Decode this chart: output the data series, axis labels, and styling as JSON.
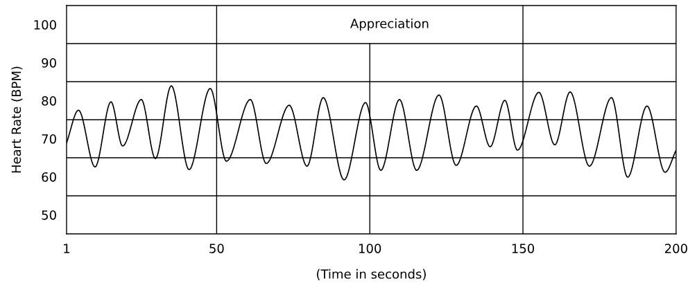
{
  "chart_data": {
    "type": "line",
    "title": "Appreciation",
    "xlabel": "(Time in seconds)",
    "ylabel": "Heart Rate (BPM)",
    "x": [
      1,
      4.9,
      10.3,
      15.5,
      19.3,
      25.4,
      30,
      35.2,
      41,
      47.9,
      53.2,
      61,
      66.2,
      73.7,
      79.5,
      84.8,
      91.6,
      98.6,
      103.6,
      109.7,
      115.3,
      122.6,
      128.2,
      134.8,
      139.3,
      144.1,
      148.2,
      155.2,
      160.4,
      165.4,
      171.7,
      178.9,
      184.2,
      190.5,
      196.4,
      200
    ],
    "series": [
      {
        "color": "#000000",
        "values": [
          68.9,
          77.5,
          62.6,
          79.7,
          68.1,
          80.3,
          64.8,
          83.9,
          61.9,
          83.2,
          64.1,
          80.3,
          63.5,
          78.8,
          62.8,
          80.8,
          59.2,
          79.5,
          61.7,
          80.3,
          61.7,
          81.5,
          63.0,
          78.6,
          67.9,
          80.1,
          67.0,
          82.2,
          68.4,
          82.3,
          62.8,
          80.8,
          59.9,
          78.6,
          61.2,
          67.0
        ]
      }
    ],
    "xlim": [
      1,
      200
    ],
    "ylim": [
      45,
      105
    ],
    "xticks": [
      1,
      50,
      100,
      150,
      200
    ],
    "yticks": [
      50,
      60,
      70,
      80,
      90,
      100
    ],
    "ref_lines": [
      {
        "axis": "y",
        "value": 55,
        "color": "#000000"
      },
      {
        "axis": "y",
        "value": 65,
        "color": "#000000"
      },
      {
        "axis": "y",
        "value": 75,
        "color": "#000000"
      },
      {
        "axis": "y",
        "value": 85,
        "color": "#000000"
      },
      {
        "axis": "y",
        "value": 95,
        "color": "#000000"
      },
      {
        "axis": "x",
        "value": 50,
        "color": "#000000"
      },
      {
        "axis": "x",
        "value": 100,
        "color": "#000000"
      },
      {
        "axis": "x",
        "value": 150,
        "color": "#000000"
      }
    ]
  }
}
